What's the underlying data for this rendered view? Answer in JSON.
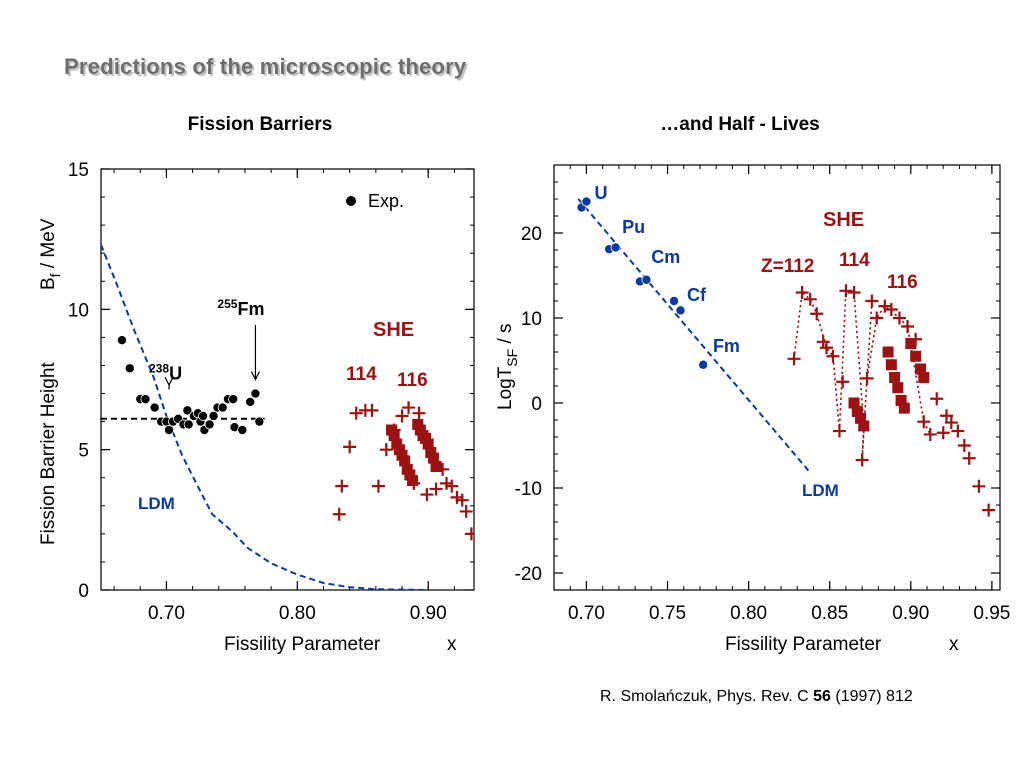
{
  "slide": {
    "title": "Predictions of the microscopic theory",
    "citation": {
      "authors_journal": "R. Smolańczuk, Phys. Rev. C",
      "volume": "56",
      "year_page": "(1997) 812"
    }
  },
  "colors": {
    "exp": "#000000",
    "ldm": "#0a3a9e",
    "she": "#9c1212",
    "text": "#000000"
  },
  "chart_data": [
    {
      "type": "scatter",
      "title": "Fission Barriers",
      "xlabel": "Fissility Parameter",
      "xlabel_symbol": "x",
      "ylabel": "Fission Barrier Height",
      "ylabel_unit": "/ MeV",
      "ylabel_symbol": "B",
      "ylabel_subscript": "f",
      "xlim": [
        0.65,
        0.935
      ],
      "ylim": [
        0,
        15
      ],
      "xticks": [
        0.7,
        0.8,
        0.9
      ],
      "xtick_labels": [
        "0.70",
        "0.80",
        "0.90"
      ],
      "yticks": [
        0,
        5,
        10,
        15
      ],
      "ytick_labels": [
        "0",
        "5",
        "10",
        "15"
      ],
      "legend": {
        "label": "Exp.",
        "position": "top-right"
      },
      "annotations": [
        {
          "mass": "238",
          "symbol": "U",
          "x": 0.702,
          "y": 7.5,
          "arrow_to": 7.3
        },
        {
          "mass": "255",
          "symbol": "Fm",
          "x": 0.768,
          "y": 9.8,
          "arrow_to": 7.5
        }
      ],
      "labels": {
        "ldm": "LDM",
        "she": "SHE",
        "z114": "114",
        "z116": "116"
      },
      "series": [
        {
          "name": "Exp.",
          "marker": "circle",
          "points": [
            [
              0.666,
              8.9
            ],
            [
              0.672,
              7.9
            ],
            [
              0.68,
              6.8
            ],
            [
              0.684,
              6.8
            ],
            [
              0.691,
              6.5
            ],
            [
              0.696,
              6.0
            ],
            [
              0.7,
              6.0
            ],
            [
              0.702,
              5.7
            ],
            [
              0.705,
              6.0
            ],
            [
              0.709,
              6.1
            ],
            [
              0.713,
              5.9
            ],
            [
              0.716,
              6.4
            ],
            [
              0.717,
              5.9
            ],
            [
              0.721,
              6.2
            ],
            [
              0.724,
              6.3
            ],
            [
              0.726,
              6.0
            ],
            [
              0.728,
              6.2
            ],
            [
              0.729,
              5.7
            ],
            [
              0.733,
              5.9
            ],
            [
              0.736,
              6.2
            ],
            [
              0.739,
              6.5
            ],
            [
              0.743,
              6.5
            ],
            [
              0.747,
              6.8
            ],
            [
              0.751,
              6.8
            ],
            [
              0.752,
              5.8
            ],
            [
              0.758,
              5.7
            ],
            [
              0.764,
              6.7
            ],
            [
              0.768,
              7.0
            ],
            [
              0.771,
              6.0
            ]
          ]
        },
        {
          "name": "LDM",
          "style": "dashed-line",
          "points": [
            [
              0.65,
              12.3
            ],
            [
              0.662,
              10.9
            ],
            [
              0.675,
              9.3
            ],
            [
              0.69,
              7.6
            ],
            [
              0.7,
              6.2
            ],
            [
              0.712,
              4.8
            ],
            [
              0.725,
              3.6
            ],
            [
              0.735,
              2.7
            ],
            [
              0.75,
              2.1
            ],
            [
              0.762,
              1.5
            ],
            [
              0.78,
              0.95
            ],
            [
              0.8,
              0.55
            ],
            [
              0.82,
              0.25
            ],
            [
              0.84,
              0.1
            ],
            [
              0.86,
              0.03
            ],
            [
              0.9,
              0.0
            ]
          ]
        },
        {
          "name": "reference",
          "style": "dashed-line",
          "points": [
            [
              0.65,
              6.1
            ],
            [
              0.775,
              6.1
            ]
          ]
        },
        {
          "name": "SHE",
          "marker": "plus",
          "points": [
            [
              0.832,
              2.7
            ],
            [
              0.834,
              3.7
            ],
            [
              0.84,
              5.1
            ],
            [
              0.845,
              6.3
            ],
            [
              0.852,
              6.4
            ],
            [
              0.857,
              6.4
            ],
            [
              0.862,
              3.7
            ],
            [
              0.868,
              5.0
            ],
            [
              0.874,
              5.7
            ],
            [
              0.88,
              6.2
            ],
            [
              0.885,
              6.5
            ],
            [
              0.889,
              3.8
            ],
            [
              0.893,
              6.3
            ],
            [
              0.899,
              3.4
            ],
            [
              0.906,
              3.6
            ],
            [
              0.911,
              4.3
            ],
            [
              0.914,
              3.8
            ],
            [
              0.918,
              3.7
            ],
            [
              0.922,
              3.3
            ],
            [
              0.926,
              3.2
            ],
            [
              0.929,
              2.8
            ],
            [
              0.933,
              2.0
            ]
          ]
        },
        {
          "name": "SHE",
          "marker": "square",
          "points": [
            [
              0.872,
              5.7
            ],
            [
              0.874,
              5.5
            ],
            [
              0.876,
              5.2
            ],
            [
              0.878,
              5.0
            ],
            [
              0.88,
              4.8
            ],
            [
              0.882,
              4.6
            ],
            [
              0.884,
              4.3
            ],
            [
              0.886,
              4.1
            ],
            [
              0.888,
              3.9
            ],
            [
              0.892,
              5.9
            ],
            [
              0.894,
              5.7
            ],
            [
              0.896,
              5.5
            ],
            [
              0.898,
              5.4
            ],
            [
              0.9,
              5.2
            ],
            [
              0.902,
              4.9
            ],
            [
              0.904,
              4.7
            ],
            [
              0.906,
              4.4
            ]
          ]
        }
      ]
    },
    {
      "type": "scatter",
      "title": "…and Half - Lives",
      "xlabel": "Fissility Parameter",
      "xlabel_symbol": "x",
      "ylabel": "LogT / s",
      "ylabel_prefix": "LogT",
      "ylabel_subscript": "SF",
      "ylabel_unit": "/ s",
      "xlim": [
        0.68,
        0.955
      ],
      "ylim": [
        -22,
        28
      ],
      "xticks": [
        0.7,
        0.75,
        0.8,
        0.85,
        0.9,
        0.95
      ],
      "xtick_labels": [
        "0.70",
        "0.75",
        "0.80",
        "0.85",
        "0.90",
        "0.95"
      ],
      "yticks": [
        -20,
        -10,
        0,
        10,
        20
      ],
      "ytick_labels": [
        "-20",
        "-10",
        "0",
        "10",
        "20"
      ],
      "labels": {
        "ldm": "LDM",
        "she": "SHE",
        "z112": "Z=112",
        "z114": "114",
        "z116": "116"
      },
      "element_labels": [
        {
          "name": "U",
          "x": 0.705,
          "y": 24.0
        },
        {
          "name": "Pu",
          "x": 0.722,
          "y": 20.0
        },
        {
          "name": "Cm",
          "x": 0.74,
          "y": 16.5
        },
        {
          "name": "Cf",
          "x": 0.762,
          "y": 12.0
        },
        {
          "name": "Fm",
          "x": 0.778,
          "y": 6.0
        }
      ],
      "series": [
        {
          "name": "Exp.",
          "marker": "circle",
          "points": [
            [
              0.697,
              23.0
            ],
            [
              0.7,
              23.7
            ],
            [
              0.714,
              18.1
            ],
            [
              0.718,
              18.3
            ],
            [
              0.733,
              14.3
            ],
            [
              0.737,
              14.5
            ],
            [
              0.754,
              12.0
            ],
            [
              0.758,
              10.9
            ],
            [
              0.772,
              4.5
            ]
          ]
        },
        {
          "name": "LDM",
          "style": "dashed-line",
          "points": [
            [
              0.695,
              24.0
            ],
            [
              0.838,
              -8.2
            ]
          ]
        },
        {
          "name": "SHE",
          "marker": "plus",
          "points": [
            [
              0.828,
              5.2
            ],
            [
              0.833,
              13.0
            ],
            [
              0.838,
              12.2
            ],
            [
              0.842,
              10.5
            ],
            [
              0.846,
              7.2
            ],
            [
              0.848,
              6.5
            ],
            [
              0.852,
              5.5
            ],
            [
              0.856,
              -3.3
            ],
            [
              0.858,
              2.5
            ],
            [
              0.86,
              13.2
            ],
            [
              0.865,
              13.0
            ],
            [
              0.87,
              -6.7
            ],
            [
              0.873,
              2.9
            ],
            [
              0.876,
              12.0
            ],
            [
              0.879,
              10.0
            ],
            [
              0.884,
              11.4
            ],
            [
              0.888,
              11.0
            ],
            [
              0.893,
              10.0
            ],
            [
              0.898,
              9.0
            ],
            [
              0.903,
              7.5
            ],
            [
              0.908,
              -2.2
            ],
            [
              0.912,
              -3.7
            ],
            [
              0.916,
              0.5
            ],
            [
              0.92,
              -3.5
            ],
            [
              0.922,
              -1.5
            ],
            [
              0.925,
              -2.3
            ],
            [
              0.929,
              -3.3
            ],
            [
              0.933,
              -5.0
            ],
            [
              0.936,
              -6.5
            ],
            [
              0.942,
              -9.8
            ],
            [
              0.948,
              -12.6
            ]
          ]
        },
        {
          "name": "SHE",
          "marker": "square",
          "points": [
            [
              0.865,
              0.0
            ],
            [
              0.867,
              -1.0
            ],
            [
              0.869,
              -1.8
            ],
            [
              0.871,
              -2.7
            ],
            [
              0.886,
              6.0
            ],
            [
              0.888,
              4.5
            ],
            [
              0.89,
              3.0
            ],
            [
              0.892,
              1.8
            ],
            [
              0.894,
              0.3
            ],
            [
              0.896,
              -0.6
            ],
            [
              0.9,
              7.0
            ],
            [
              0.903,
              5.5
            ],
            [
              0.906,
              4.0
            ],
            [
              0.908,
              3.0
            ]
          ]
        },
        {
          "name": "Z=112",
          "style": "dotted-line",
          "points": [
            [
              0.828,
              5.2
            ],
            [
              0.833,
              13.0
            ],
            [
              0.838,
              12.2
            ],
            [
              0.842,
              10.5
            ],
            [
              0.848,
              6.5
            ],
            [
              0.852,
              5.5
            ],
            [
              0.856,
              -3.3
            ]
          ]
        },
        {
          "name": "114",
          "style": "dotted-line",
          "points": [
            [
              0.856,
              -3.3
            ],
            [
              0.86,
              13.2
            ],
            [
              0.865,
              13.0
            ],
            [
              0.871,
              -2.7
            ],
            [
              0.87,
              -6.7
            ],
            [
              0.873,
              2.9
            ],
            [
              0.876,
              12.0
            ]
          ]
        },
        {
          "name": "116",
          "style": "dotted-line",
          "points": [
            [
              0.873,
              2.9
            ],
            [
              0.879,
              10.0
            ],
            [
              0.884,
              11.4
            ],
            [
              0.893,
              10.0
            ],
            [
              0.898,
              9.0
            ],
            [
              0.908,
              -2.2
            ],
            [
              0.912,
              -3.7
            ]
          ]
        }
      ]
    }
  ]
}
